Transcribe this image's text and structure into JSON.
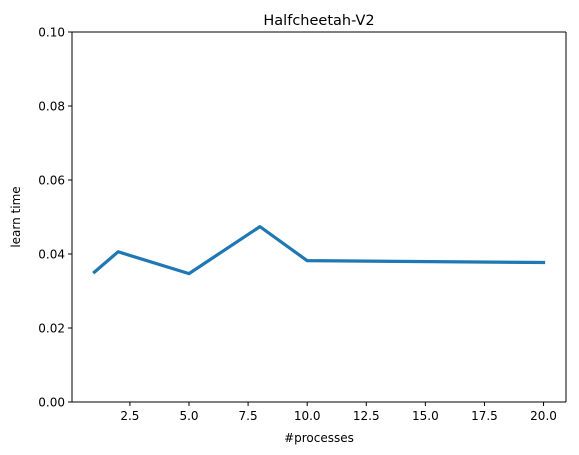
{
  "chart_data": {
    "type": "line",
    "title": "Halfcheetah-V2",
    "xlabel": "#processes",
    "ylabel": "learn time",
    "xlim": [
      0.05,
      20.95
    ],
    "ylim": [
      0.0,
      0.1
    ],
    "x_ticks": [
      2.5,
      5.0,
      7.5,
      10.0,
      12.5,
      15.0,
      17.5,
      20.0
    ],
    "x_tick_labels": [
      "2.5",
      "5.0",
      "7.5",
      "10.0",
      "12.5",
      "15.0",
      "17.5",
      "20.0"
    ],
    "y_ticks": [
      0.0,
      0.02,
      0.04,
      0.06,
      0.08,
      0.1
    ],
    "y_tick_labels": [
      "0.00",
      "0.02",
      "0.04",
      "0.06",
      "0.08",
      "0.10"
    ],
    "grid": false,
    "legend": "none",
    "series": [
      {
        "color": "#1f77b4",
        "x": [
          1,
          2,
          5,
          8,
          10,
          20
        ],
        "y": [
          0.0351,
          0.0406,
          0.0347,
          0.0474,
          0.0382,
          0.0377
        ]
      }
    ]
  }
}
